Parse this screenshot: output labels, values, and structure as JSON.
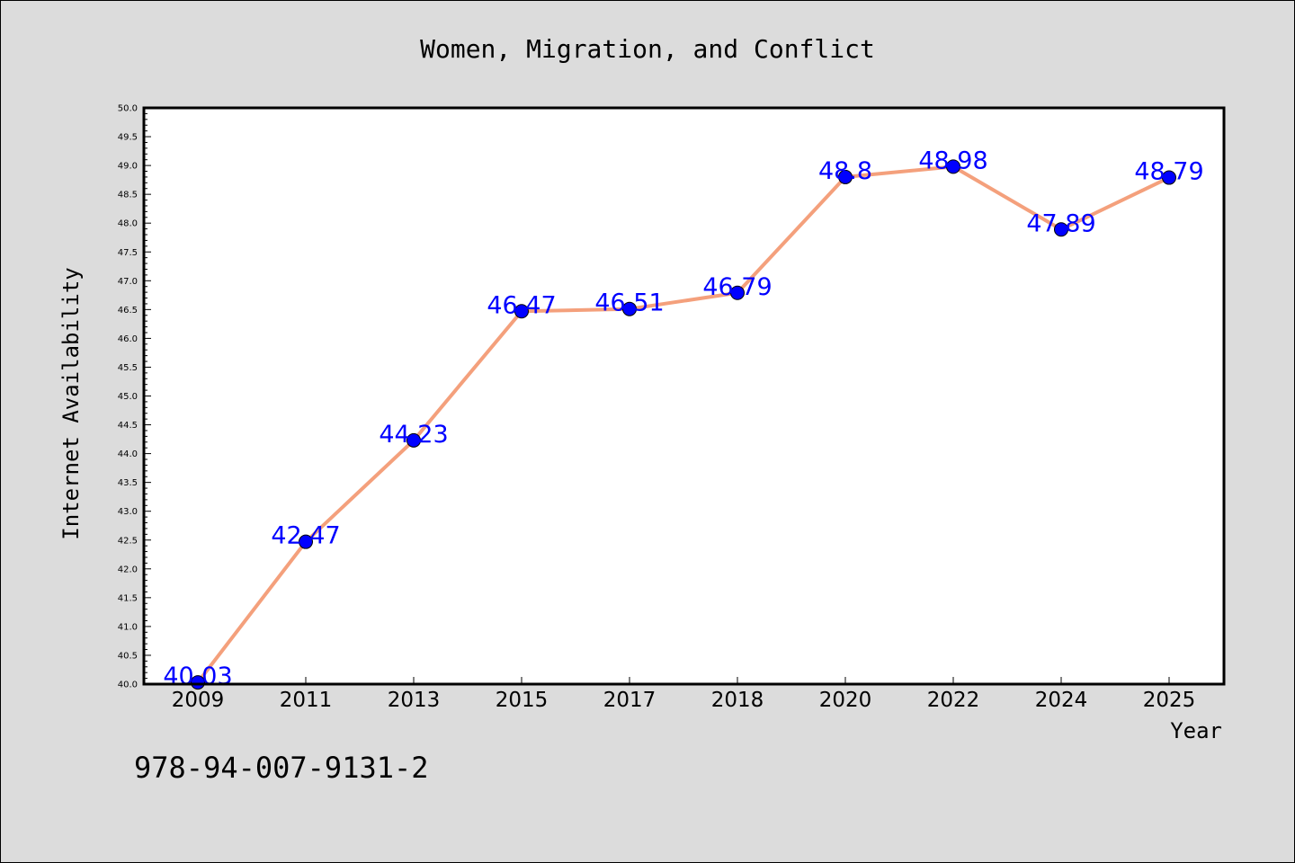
{
  "chart_data": {
    "type": "line",
    "title": "Women, Migration, and Conflict",
    "xlabel": "Year",
    "ylabel": "Internet Availability",
    "categories": [
      "2009",
      "2011",
      "2013",
      "2015",
      "2017",
      "2018",
      "2020",
      "2022",
      "2024",
      "2025"
    ],
    "values": [
      40.03,
      42.47,
      44.23,
      46.47,
      46.51,
      46.79,
      48.8,
      48.98,
      47.89,
      48.79
    ],
    "data_labels": [
      "40.03",
      "42.47",
      "44.23",
      "46.47",
      "46.51",
      "46.79",
      "48.8",
      "48.98",
      "47.89",
      "48.79"
    ],
    "yticks": [
      "40.0",
      "40.5",
      "41.0",
      "41.5",
      "42.0",
      "42.5",
      "43.0",
      "43.5",
      "44.0",
      "44.5",
      "45.0",
      "45.5",
      "46.0",
      "46.5",
      "47.0",
      "47.5",
      "48.0",
      "48.5",
      "49.0",
      "49.5",
      "50.0"
    ],
    "ylim": [
      40.0,
      50.0
    ],
    "grid": false,
    "legend": "none",
    "line_color": "#f4a07c",
    "marker_color": "#0000ff",
    "label_color": "#0000ff"
  },
  "annotation": {
    "isbn": "978-94-007-9131-2"
  }
}
